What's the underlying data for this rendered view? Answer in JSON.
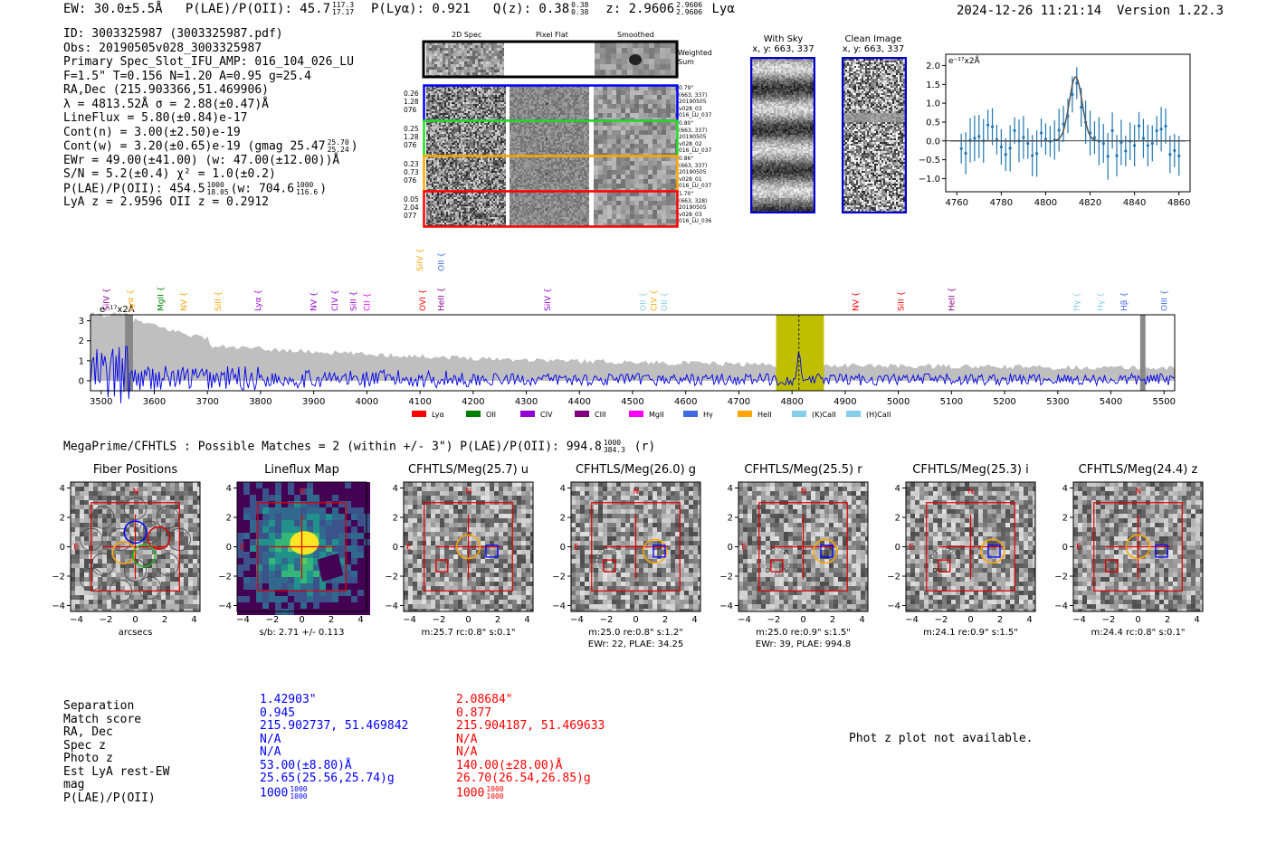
{
  "header": {
    "ew": "EW: 30.0±5.5Å",
    "plae": "P(LAE)/P(OII): 45.7",
    "plae_hi": "117.3",
    "plae_lo": "17.17",
    "plya": "P(Lyα): 0.921",
    "qz": "Q(z): 0.38",
    "qz_hi": "0.38",
    "qz_lo": "0.38",
    "z": "z: 2.9606",
    "z_hi": "2.9606",
    "z_lo": "2.9606",
    "line": "Lyα",
    "timestamp": "2024-12-26 11:21:14",
    "version": "Version 1.22.3"
  },
  "info": {
    "id": "ID: 3003325987 (3003325987.pdf)",
    "obs": "Obs: 20190505v028_3003325987",
    "primary": "Primary Spec_Slot_IFU_AMP: 016_104_026_LU",
    "fparams": "F=1.5\"  T=0.156  N=1.20  A=0.95  g=25.4",
    "radec": "RA,Dec (215.903366,51.469906)",
    "lambda": "λ = 4813.52Å   σ = 2.88(±0.47)Å",
    "lineflux": "LineFlux = 5.80(±0.84)e-17",
    "contn": "Cont(n) = 3.00(±2.50)e-19",
    "contw": "Cont(w) = 3.20(±0.65)e-19 (gmag 25.47",
    "contw_hi": "25.70",
    "contw_lo": "25.24",
    "ewr": "EWr = 49.00(±41.00) (w: 47.00(±12.00))Å",
    "sn": "S/N = 5.2(±0.4)  χ² = 1.0(±0.2)",
    "plae2": "P(LAE)/P(OII): 454.5",
    "plae2_hi": "1000",
    "plae2_lo": "18.05",
    "plae2_w": "(w: 704.6",
    "plae2_w_hi": "1000",
    "plae2_w_lo": "116.6",
    "zline": "LyA z = 2.9596   OII z = 0.2912"
  },
  "spec2d": {
    "col_headers": [
      "2D Spec",
      "Pixel Flat",
      "Smoothed"
    ],
    "weighted_label": "Weighted Sum",
    "rows": [
      {
        "left": [
          "0.26",
          "1.28",
          "076"
        ],
        "right": [
          "0.79\"",
          "(663, 337)",
          "20190505",
          "v028_03",
          "016_LU_037"
        ],
        "color": "#0000ff"
      },
      {
        "left": [
          "0.25",
          "1.28",
          "076"
        ],
        "right": [
          "0.80\"",
          "(663, 337)",
          "20190505",
          "v028_02",
          "016_LU_037"
        ],
        "color": "#22dd22"
      },
      {
        "left": [
          "0.23",
          "0.73",
          "076"
        ],
        "right": [
          "0.86\"",
          "(663, 337)",
          "20190505",
          "v028_01",
          "016_LU_037"
        ],
        "color": "#ffa500"
      },
      {
        "left": [
          "0.05",
          "2.04",
          "077"
        ],
        "right": [
          "1.70\"",
          "(663, 328)",
          "20190505",
          "v028_03",
          "016_LU_036"
        ],
        "color": "#ff0000"
      }
    ]
  },
  "cutouts": {
    "with_sky_title": "With Sky",
    "with_sky_coords": "x, y: 663, 337",
    "clean_title": "Clean Image",
    "clean_coords": "x, y: 663, 337"
  },
  "line_fit_plot": {
    "unit_label": "e⁻¹⁷x2Å",
    "x_ticks": [
      "4760",
      "4780",
      "4800",
      "4820",
      "4840",
      "4860"
    ],
    "y_ticks": [
      "2.0",
      "1.5",
      "1.0",
      "0.5",
      "0.0",
      "−0.5",
      "−1.0"
    ]
  },
  "full_spec": {
    "unit_label": "e⁻¹⁷x2Å",
    "x_ticks": [
      "3500",
      "3600",
      "3700",
      "3800",
      "3900",
      "4000",
      "4100",
      "4200",
      "4300",
      "4400",
      "4500",
      "4600",
      "4700",
      "4800",
      "4900",
      "5000",
      "5100",
      "5200",
      "5300",
      "5400",
      "5500"
    ],
    "y_ticks": [
      "3",
      "2",
      "1",
      "0"
    ],
    "line_marks": [
      {
        "label": "SiIV",
        "color": "#8b008b",
        "w": 3510
      },
      {
        "label": "Lyα",
        "color": "#ffa500",
        "w": 3555
      },
      {
        "label": "MgII",
        "color": "#008000",
        "w": 3612
      },
      {
        "label": "NV",
        "color": "#ffa500",
        "w": 3655
      },
      {
        "label": "SiII",
        "color": "#ffa500",
        "w": 3720
      },
      {
        "label": "Lyα",
        "color": "#9400d3",
        "w": 3795
      },
      {
        "label": "NV",
        "color": "#9400d3",
        "w": 3900
      },
      {
        "label": "CIV",
        "color": "#9400d3",
        "w": 3940
      },
      {
        "label": "SiII",
        "color": "#9400d3",
        "w": 3975
      },
      {
        "label": "CII",
        "color": "#ff00ff",
        "w": 4000
      },
      {
        "label": "OVI",
        "color": "#ff0000",
        "w": 4105
      },
      {
        "label": "HeII",
        "color": "#8b008b",
        "w": 4140
      },
      {
        "label": "SiIV",
        "color": "#9400d3",
        "w": 4340
      },
      {
        "label": "OII",
        "color": "#87ceeb",
        "w": 4520
      },
      {
        "label": "CIV",
        "color": "#ffa500",
        "w": 4540
      },
      {
        "label": "OII",
        "color": "#87ceeb",
        "w": 4560
      },
      {
        "label": "NV",
        "color": "#ff0000",
        "w": 4920
      },
      {
        "label": "SiII",
        "color": "#ff0000",
        "w": 5005
      },
      {
        "label": "HeII",
        "color": "#8b008b",
        "w": 5100
      },
      {
        "label": "Hγ",
        "color": "#87ceeb",
        "w": 5335
      },
      {
        "label": "Hγ",
        "color": "#87ceeb",
        "w": 5380
      },
      {
        "label": "Hβ",
        "color": "#4169e1",
        "w": 5425
      },
      {
        "label": "OIII",
        "color": "#4169e1",
        "w": 5500
      }
    ],
    "top_marks": [
      {
        "label": "SiIV",
        "color": "#ffa500",
        "w": 4100
      },
      {
        "label": "OII",
        "color": "#4169e1",
        "w": 4140
      }
    ],
    "legend": [
      {
        "label": "Lyα",
        "color": "#ff0000"
      },
      {
        "label": "OII",
        "color": "#008000"
      },
      {
        "label": "CIV",
        "color": "#9400d3"
      },
      {
        "label": "CIII",
        "color": "#800080"
      },
      {
        "label": "MgII",
        "color": "#ff00ff"
      },
      {
        "label": "Hγ",
        "color": "#4169e1"
      },
      {
        "label": "HeII",
        "color": "#ffa500"
      },
      {
        "label": "(K)CaII",
        "color": "#87ceeb"
      },
      {
        "label": "(H)CaII",
        "color": "#87ceeb"
      }
    ]
  },
  "megaprime": {
    "title": "MegaPrime/CFHTLS : Possible Matches = 2 (within +/- 3\")  P(LAE)/P(OII): 994.8",
    "title_hi": "1000",
    "title_lo": "384.3",
    "title_tail": "(r)"
  },
  "imaging_panels": [
    {
      "title": "Fiber Positions",
      "cap1": "arcsecs",
      "cap2": ""
    },
    {
      "title": "Lineflux Map",
      "cap1": "s/b: 2.71 +/- 0.113",
      "cap2": ""
    },
    {
      "title": "CFHTLS/Meg(25.7) u",
      "cap1": "m:25.7 rc:0.8\"  s:0.1\"",
      "cap2": ""
    },
    {
      "title": "CFHTLS/Meg(26.0) g",
      "cap1": "m:25.0  re:0.8\"  s:1.2\"",
      "cap2": "EWr: 22, PLAE: 34.25"
    },
    {
      "title": "CFHTLS/Meg(25.5) r",
      "cap1": "m:25.0  re:0.9\"  s:1.5\"",
      "cap2": "EWr: 39, PLAE: 994.8"
    },
    {
      "title": "CFHTLS/Meg(25.3) i",
      "cap1": "m:24.1  re:0.9\"  s:1.5\"",
      "cap2": ""
    },
    {
      "title": "CFHTLS/Meg(24.4) z",
      "cap1": "m:24.4 rc:0.8\"  s:0.1\"",
      "cap2": ""
    }
  ],
  "axis_ticks": [
    "4",
    "2",
    "0",
    "−2",
    "−4"
  ],
  "axis_xticks": [
    "−4",
    "−2",
    "0",
    "2",
    "4"
  ],
  "compass": {
    "n": "N",
    "e": "E"
  },
  "matches": {
    "labels": [
      "Separation",
      "Match score",
      "RA, Dec",
      "Spec z",
      "Photo z",
      "Est LyA rest-EW",
      "mag",
      "P(LAE)/P(OII)"
    ],
    "m1": [
      "1.42903\"",
      "0.945",
      "215.902737, 51.469842",
      "N/A",
      "N/A",
      "53.00(±8.80)Å",
      "25.65(25.56,25.74)g",
      "1000"
    ],
    "m1_plae_hi": "1000",
    "m1_plae_lo": "1000",
    "m2": [
      "2.08684\"",
      "0.877",
      "215.904187, 51.469633",
      "N/A",
      "N/A",
      "140.00(±28.00)Å",
      "26.70(26.54,26.85)g",
      "1000"
    ],
    "m2_plae_hi": "1000",
    "m2_plae_lo": "1000",
    "photz_note": "Phot z plot not available."
  }
}
